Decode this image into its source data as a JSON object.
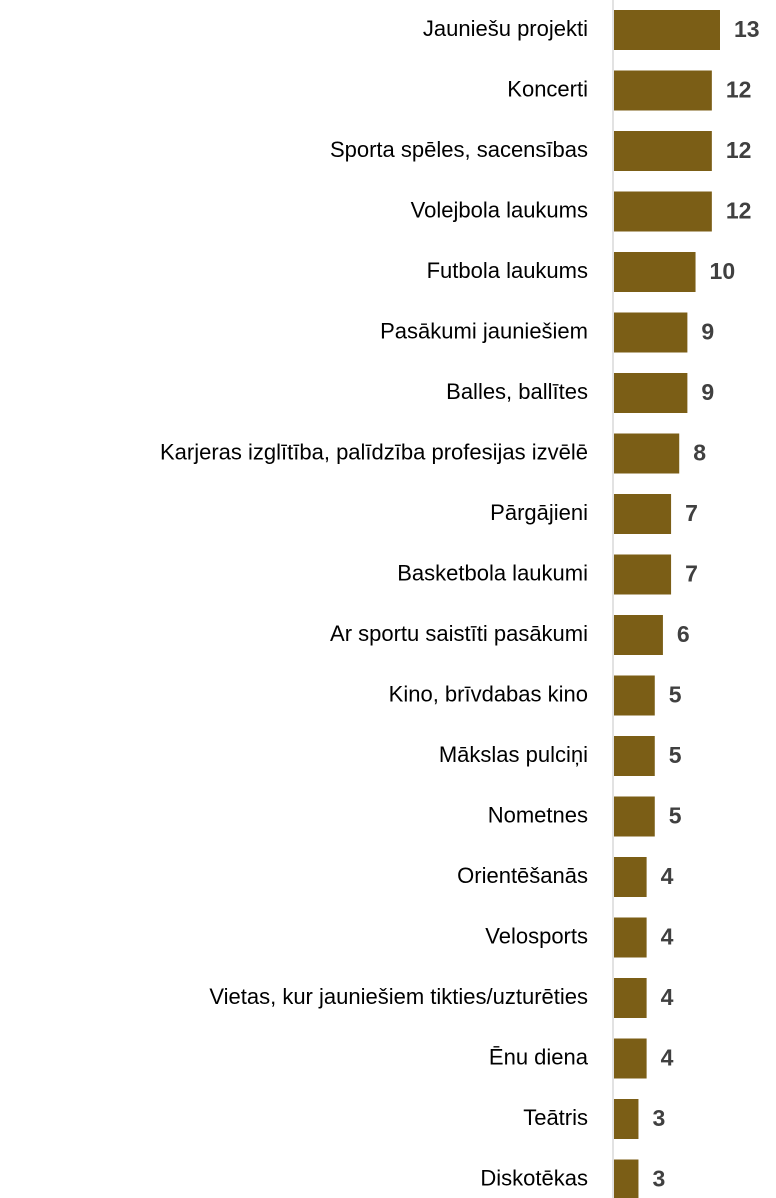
{
  "chart_data": {
    "type": "barh",
    "categories": [
      "Jauniešu projekti",
      "Koncerti",
      "Sporta spēles, sacensības",
      "Volejbola laukums",
      "Futbola laukums",
      "Pasākumi jauniešiem",
      "Balles, ballītes",
      "Karjeras izglītība, palīdzība profesijas izvēlē",
      "Pārgājieni",
      "Basketbola laukumi",
      "Ar sportu saistīti pasākumi",
      "Kino, brīvdabas kino",
      "Mākslas pulciņi",
      "Nometnes",
      "Orientēšanās",
      "Velosports",
      "Vietas, kur jauniešiem tikties/uzturēties",
      "Ēnu diena",
      "Teātris",
      "Diskotēkas"
    ],
    "values": [
      13,
      12,
      12,
      12,
      10,
      9,
      9,
      8,
      7,
      7,
      6,
      5,
      5,
      5,
      4,
      4,
      4,
      4,
      3,
      3
    ],
    "color": "#7b5e16"
  }
}
